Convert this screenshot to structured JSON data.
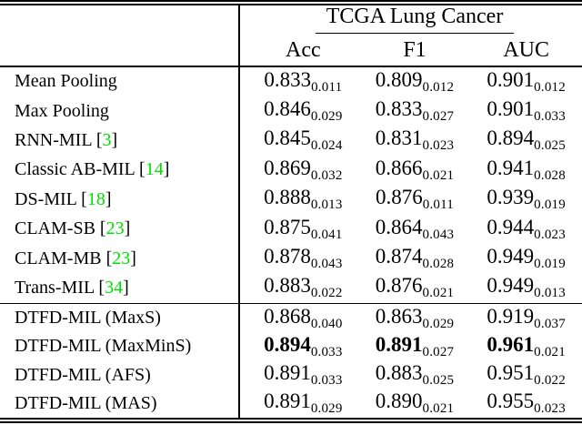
{
  "page": {
    "background": "#ffffff"
  },
  "table": {
    "group_header": "TCGA Lung Cancer",
    "columns": [
      "Acc",
      "F1",
      "AUC"
    ],
    "citation_brackets": {
      "open": "[",
      "close": "]"
    },
    "colors": {
      "text": "#000000",
      "citation": "#00E000",
      "rule": "#000000"
    },
    "groups": [
      {
        "rows": [
          {
            "method": "Mean Pooling",
            "cite": "",
            "bold": false,
            "cells": [
              {
                "v": "0.833",
                "s": "0.011"
              },
              {
                "v": "0.809",
                "s": "0.012"
              },
              {
                "v": "0.901",
                "s": "0.012"
              }
            ]
          },
          {
            "method": "Max Pooling",
            "cite": "",
            "bold": false,
            "cells": [
              {
                "v": "0.846",
                "s": "0.029"
              },
              {
                "v": "0.833",
                "s": "0.027"
              },
              {
                "v": "0.901",
                "s": "0.033"
              }
            ]
          },
          {
            "method": "RNN-MIL",
            "cite": "3",
            "bold": false,
            "cells": [
              {
                "v": "0.845",
                "s": "0.024"
              },
              {
                "v": "0.831",
                "s": "0.023"
              },
              {
                "v": "0.894",
                "s": "0.025"
              }
            ]
          },
          {
            "method": "Classic AB-MIL",
            "cite": "14",
            "bold": false,
            "cells": [
              {
                "v": "0.869",
                "s": "0.032"
              },
              {
                "v": "0.866",
                "s": "0.021"
              },
              {
                "v": "0.941",
                "s": "0.028"
              }
            ]
          },
          {
            "method": "DS-MIL",
            "cite": "18",
            "bold": false,
            "cells": [
              {
                "v": "0.888",
                "s": "0.013"
              },
              {
                "v": "0.876",
                "s": "0.011"
              },
              {
                "v": "0.939",
                "s": "0.019"
              }
            ]
          },
          {
            "method": "CLAM-SB",
            "cite": "23",
            "bold": false,
            "cells": [
              {
                "v": "0.875",
                "s": "0.041"
              },
              {
                "v": "0.864",
                "s": "0.043"
              },
              {
                "v": "0.944",
                "s": "0.023"
              }
            ]
          },
          {
            "method": "CLAM-MB",
            "cite": "23",
            "bold": false,
            "cells": [
              {
                "v": "0.878",
                "s": "0.043"
              },
              {
                "v": "0.874",
                "s": "0.028"
              },
              {
                "v": "0.949",
                "s": "0.019"
              }
            ]
          },
          {
            "method": "Trans-MIL",
            "cite": "34",
            "bold": false,
            "cells": [
              {
                "v": "0.883",
                "s": "0.022"
              },
              {
                "v": "0.876",
                "s": "0.021"
              },
              {
                "v": "0.949",
                "s": "0.013"
              }
            ]
          }
        ]
      },
      {
        "rows": [
          {
            "method": "DTFD-MIL (MaxS)",
            "cite": "",
            "bold": false,
            "cells": [
              {
                "v": "0.868",
                "s": "0.040"
              },
              {
                "v": "0.863",
                "s": "0.029"
              },
              {
                "v": "0.919",
                "s": "0.037"
              }
            ]
          },
          {
            "method": "DTFD-MIL (MaxMinS)",
            "cite": "",
            "bold": true,
            "cells": [
              {
                "v": "0.894",
                "s": "0.033"
              },
              {
                "v": "0.891",
                "s": "0.027"
              },
              {
                "v": "0.961",
                "s": "0.021"
              }
            ]
          },
          {
            "method": "DTFD-MIL (AFS)",
            "cite": "",
            "bold": false,
            "cells": [
              {
                "v": "0.891",
                "s": "0.033"
              },
              {
                "v": "0.883",
                "s": "0.025"
              },
              {
                "v": "0.951",
                "s": "0.022"
              }
            ]
          },
          {
            "method": "DTFD-MIL (MAS)",
            "cite": "",
            "bold": false,
            "cells": [
              {
                "v": "0.891",
                "s": "0.029"
              },
              {
                "v": "0.890",
                "s": "0.021"
              },
              {
                "v": "0.955",
                "s": "0.023"
              }
            ]
          }
        ]
      }
    ]
  }
}
